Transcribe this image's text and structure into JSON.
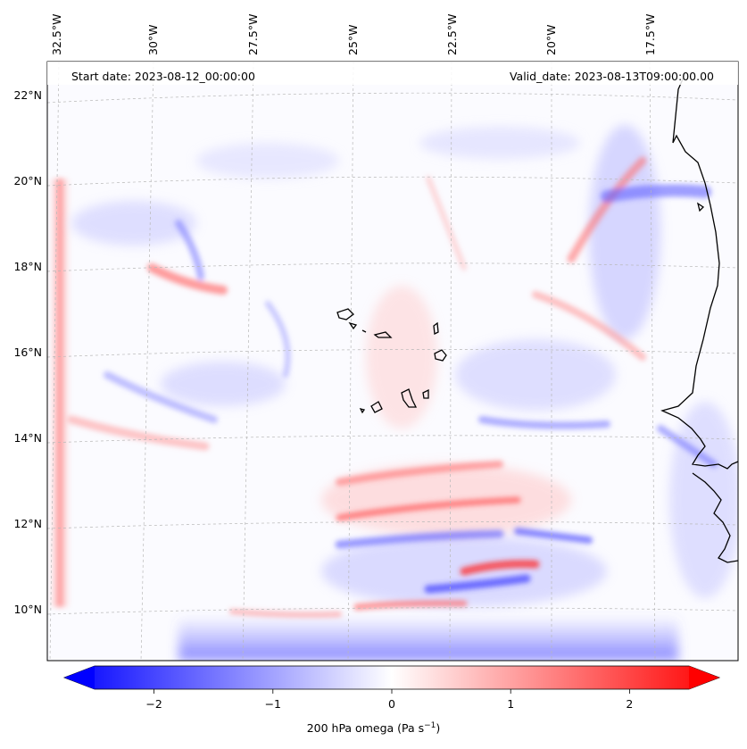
{
  "header": {
    "start_date": "Start date: 2023-08-12_00:00:00",
    "valid_date": "Valid_date: 2023-08-13T09:00:00.00"
  },
  "axes": {
    "lon_labels": [
      "32.5°W",
      "30°W",
      "27.5°W",
      "25°W",
      "22.5°W",
      "20°W",
      "17.5°W"
    ],
    "lat_labels": [
      "22°N",
      "20°N",
      "18°N",
      "16°N",
      "14°N",
      "12°N",
      "10°N"
    ]
  },
  "colorbar": {
    "ticks": [
      "−2",
      "−1",
      "0",
      "1",
      "2"
    ],
    "tick_values": [
      -2,
      -1,
      0,
      1,
      2
    ],
    "range": [
      -2.5,
      2.5
    ],
    "label_main": "200 hPa omega (Pa s",
    "label_sup": "−1",
    "label_end": ")",
    "colormap": "bwr",
    "colors": {
      "low": "#0000ff",
      "mid": "#ffffff",
      "high": "#ff0000"
    }
  },
  "chart_data": {
    "type": "heatmap",
    "variable": "200 hPa omega",
    "units": "Pa s−1",
    "colormap": "bwr",
    "vmin": -2.5,
    "vmax": 2.5,
    "extend": "both",
    "projection": "lambert-conformal",
    "lon_range": [
      -33,
      -16.5
    ],
    "lat_range": [
      9,
      22.7
    ],
    "gridlines": true,
    "coastlines": [
      "West Africa coast (Mauritania, Senegal, Gambia, Guinea-Bissau)",
      "Cape Verde islands"
    ]
  }
}
